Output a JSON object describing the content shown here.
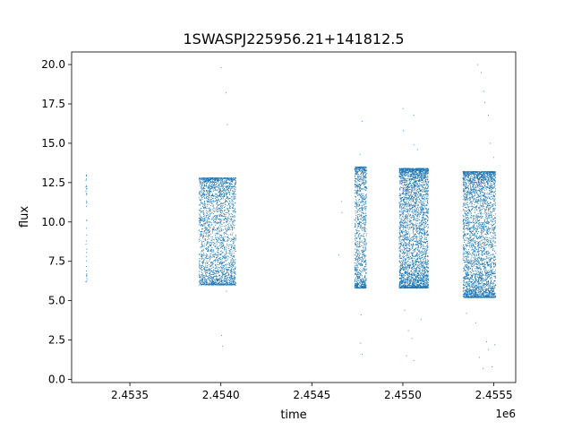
{
  "chart_data": {
    "type": "scatter",
    "title": "1SWASPJ225956.21+141812.5",
    "xlabel": "time",
    "ylabel": "flux",
    "x_offset_label": "1e6",
    "xlim": [
      2453180,
      2455620
    ],
    "ylim": [
      -0.2,
      20.8
    ],
    "x_ticks": [
      2453500,
      2454000,
      2454500,
      2455000,
      2455500
    ],
    "x_tick_labels": [
      "2.4535",
      "2.4540",
      "2.4545",
      "2.4550",
      "2.4555"
    ],
    "y_ticks": [
      0.0,
      2.5,
      5.0,
      7.5,
      10.0,
      12.5,
      15.0,
      17.5,
      20.0
    ],
    "y_tick_labels": [
      "0.0",
      "2.5",
      "5.0",
      "7.5",
      "10.0",
      "12.5",
      "15.0",
      "17.5",
      "20.0"
    ],
    "grid": false,
    "series": [
      {
        "color": "#1f77b4",
        "clusters": [
          {
            "x_range": [
              2453258,
              2453264
            ],
            "y_range": [
              6.2,
              13.0
            ],
            "count": 40
          },
          {
            "x_range": [
              2453880,
              2454082
            ],
            "y_range": [
              6.0,
              12.8
            ],
            "count": 2600
          },
          {
            "x_range": [
              2454735,
              2454800
            ],
            "y_range": [
              5.8,
              13.5
            ],
            "count": 1100
          },
          {
            "x_range": [
              2454980,
              2455140
            ],
            "y_range": [
              5.8,
              13.4
            ],
            "count": 3400
          },
          {
            "x_range": [
              2455330,
              2455510
            ],
            "y_range": [
              5.2,
              13.2
            ],
            "count": 3400
          }
        ],
        "outliers": [
          {
            "x": 2454001,
            "y": 19.8
          },
          {
            "x": 2454029,
            "y": 18.2
          },
          {
            "x": 2454035,
            "y": 16.2
          },
          {
            "x": 2454004,
            "y": 2.8
          },
          {
            "x": 2454010,
            "y": 2.1
          },
          {
            "x": 2454030,
            "y": 5.6
          },
          {
            "x": 2453900,
            "y": 11.0
          },
          {
            "x": 2454662,
            "y": 11.3
          },
          {
            "x": 2454665,
            "y": 10.6
          },
          {
            "x": 2454775,
            "y": 16.4
          },
          {
            "x": 2454765,
            "y": 14.3
          },
          {
            "x": 2454770,
            "y": 4.1
          },
          {
            "x": 2454768,
            "y": 2.3
          },
          {
            "x": 2454776,
            "y": 1.6
          },
          {
            "x": 2454648,
            "y": 7.9
          },
          {
            "x": 2455001,
            "y": 17.2
          },
          {
            "x": 2455003,
            "y": 15.8
          },
          {
            "x": 2455060,
            "y": 16.8
          },
          {
            "x": 2455060,
            "y": 14.9
          },
          {
            "x": 2455080,
            "y": 14.6
          },
          {
            "x": 2455030,
            "y": 3.1
          },
          {
            "x": 2455020,
            "y": 1.5
          },
          {
            "x": 2455060,
            "y": 1.2
          },
          {
            "x": 2455050,
            "y": 2.6
          },
          {
            "x": 2455100,
            "y": 3.8
          },
          {
            "x": 2455010,
            "y": 4.4
          },
          {
            "x": 2455410,
            "y": 20.0
          },
          {
            "x": 2455430,
            "y": 19.5
          },
          {
            "x": 2455445,
            "y": 18.3
          },
          {
            "x": 2455450,
            "y": 17.6
          },
          {
            "x": 2455470,
            "y": 16.8
          },
          {
            "x": 2455500,
            "y": 14.1
          },
          {
            "x": 2455480,
            "y": 15.0
          },
          {
            "x": 2455420,
            "y": 1.4
          },
          {
            "x": 2455440,
            "y": 0.7
          },
          {
            "x": 2455460,
            "y": 2.4
          },
          {
            "x": 2455490,
            "y": 0.8
          },
          {
            "x": 2455400,
            "y": 3.6
          },
          {
            "x": 2455470,
            "y": 1.9
          },
          {
            "x": 2455350,
            "y": 4.2
          },
          {
            "x": 2455505,
            "y": 2.2
          }
        ]
      }
    ]
  }
}
